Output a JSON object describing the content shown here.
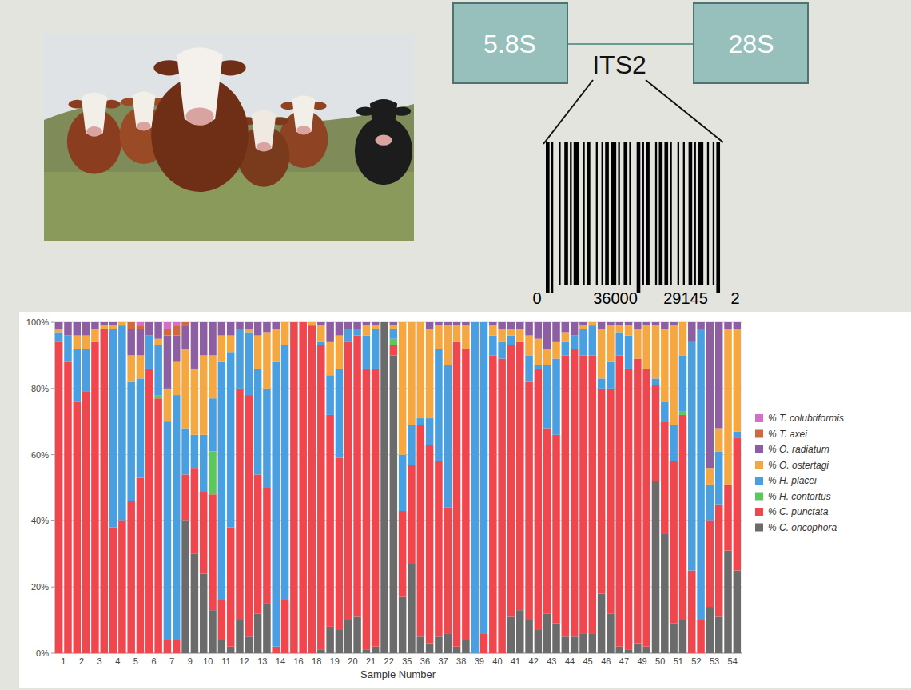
{
  "chart_data": {
    "type": "bar",
    "stacked": true,
    "grid": true,
    "legend": "right",
    "x_label": "Sample Number",
    "ylim": [
      0,
      100
    ],
    "yticks": [
      {
        "value": 0,
        "label": "0%"
      },
      {
        "value": 20,
        "label": "20%"
      },
      {
        "value": 40,
        "label": "40%"
      },
      {
        "value": 60,
        "label": "60%"
      },
      {
        "value": 80,
        "label": "80%"
      },
      {
        "value": 100,
        "label": "100%"
      }
    ],
    "categories": [
      "1",
      null,
      "2",
      null,
      "3",
      null,
      "4",
      null,
      "5",
      null,
      "6",
      null,
      "7",
      null,
      "9",
      null,
      "10",
      null,
      "11",
      null,
      "12",
      null,
      "13",
      null,
      "14",
      null,
      "16",
      null,
      "18",
      null,
      "19",
      null,
      "20",
      null,
      "21",
      null,
      "22",
      null,
      "35",
      null,
      "36",
      null,
      "37",
      null,
      "38",
      null,
      "39",
      null,
      "40",
      null,
      "41",
      null,
      "42",
      null,
      "43",
      null,
      "44",
      null,
      "45",
      null,
      "46",
      null,
      "47",
      null,
      "49",
      null,
      "50",
      null,
      "51",
      null,
      "52",
      null,
      "53",
      null,
      "54",
      null
    ],
    "series": [
      {
        "name": "% C. oncophora",
        "color": "#6b6b6b",
        "values": [
          0,
          0,
          0,
          0,
          0,
          0,
          0,
          0,
          0,
          0,
          0,
          0,
          0,
          0,
          40,
          30,
          24,
          13,
          4,
          2,
          10,
          5,
          12,
          15,
          0,
          0,
          0,
          0,
          0,
          1,
          8,
          7,
          10,
          11,
          1,
          2,
          100,
          90,
          17,
          27,
          5,
          3,
          5,
          6,
          2,
          4,
          0,
          0,
          0,
          0,
          11,
          13,
          10,
          7,
          12,
          9,
          5,
          5,
          6,
          6,
          18,
          12,
          2,
          1,
          3,
          2,
          52,
          36,
          9,
          10,
          0,
          0,
          14,
          11,
          31,
          25
        ]
      },
      {
        "name": "% C. punctata",
        "color": "#f0474f",
        "values": [
          94,
          88,
          76,
          79,
          94,
          98,
          38,
          40,
          46,
          53,
          86,
          77,
          4,
          4,
          14,
          26,
          25,
          35,
          12,
          36,
          70,
          73,
          42,
          35,
          2,
          16,
          100,
          100,
          99,
          92,
          64,
          52,
          84,
          85,
          85,
          84,
          0,
          3,
          26,
          30,
          64,
          60,
          53,
          38,
          92,
          88,
          0,
          6,
          90,
          89,
          82,
          81,
          72,
          79,
          56,
          57,
          85,
          87,
          84,
          84,
          62,
          68,
          88,
          85,
          86,
          84,
          29,
          34,
          49,
          62,
          25,
          10,
          26,
          34,
          20,
          40
        ]
      },
      {
        "name": "% H. contortus",
        "color": "#5cc85c",
        "values": [
          0,
          0,
          0,
          0,
          0,
          0,
          0,
          0,
          0,
          0,
          0,
          1,
          0,
          0,
          0,
          0,
          0,
          13,
          0,
          0,
          0,
          0,
          0,
          0,
          0,
          0,
          0,
          0,
          0,
          0,
          0,
          0,
          0,
          0,
          0,
          0,
          0,
          2,
          0,
          0,
          0,
          0,
          0,
          0,
          0,
          0,
          0,
          0,
          0,
          0,
          0,
          0,
          0,
          0,
          0,
          0,
          0,
          0,
          0,
          0,
          0,
          0,
          0,
          0,
          0,
          0,
          0,
          0,
          0,
          1,
          0,
          0,
          0,
          0,
          0,
          0
        ]
      },
      {
        "name": "% H. placei",
        "color": "#4a9fe0",
        "values": [
          3,
          8,
          16,
          13,
          0,
          0,
          60,
          59,
          36,
          30,
          10,
          15,
          66,
          74,
          14,
          10,
          17,
          16,
          72,
          53,
          18,
          19,
          32,
          30,
          86,
          77,
          0,
          0,
          0,
          1,
          12,
          27,
          4,
          2,
          10,
          12,
          0,
          3,
          17,
          12,
          2,
          8,
          34,
          43,
          0,
          0,
          100,
          94,
          6,
          5,
          3,
          0,
          8,
          1,
          19,
          23,
          4,
          4,
          8,
          9,
          3,
          8,
          7,
          10,
          0,
          0,
          2,
          6,
          11,
          17,
          69,
          88,
          11,
          16,
          0,
          2
        ]
      },
      {
        "name": "% O. ostertagi",
        "color": "#f5a742",
        "values": [
          1,
          0,
          4,
          4,
          4,
          1,
          1,
          1,
          8,
          7,
          0,
          2,
          10,
          10,
          24,
          20,
          24,
          13,
          8,
          5,
          0,
          1,
          10,
          17,
          10,
          7,
          0,
          0,
          1,
          5,
          10,
          10,
          0,
          0,
          3,
          1,
          0,
          1,
          40,
          31,
          29,
          27,
          7,
          12,
          5,
          7,
          0,
          0,
          3,
          4,
          2,
          4,
          6,
          8,
          5,
          5,
          3,
          0,
          1,
          1,
          15,
          11,
          2,
          3,
          9,
          13,
          16,
          22,
          30,
          10,
          0,
          0,
          5,
          7,
          47,
          31
        ]
      },
      {
        "name": "% O. radiatum",
        "color": "#8e5ea2",
        "values": [
          2,
          4,
          4,
          4,
          2,
          1,
          1,
          0,
          8,
          8,
          4,
          5,
          16,
          8,
          7,
          14,
          10,
          10,
          4,
          4,
          2,
          2,
          4,
          3,
          2,
          0,
          0,
          0,
          0,
          1,
          6,
          4,
          2,
          2,
          1,
          1,
          0,
          1,
          0,
          0,
          0,
          2,
          1,
          1,
          1,
          1,
          0,
          0,
          1,
          2,
          2,
          2,
          4,
          5,
          8,
          6,
          3,
          4,
          1,
          0,
          2,
          1,
          1,
          1,
          2,
          1,
          1,
          2,
          1,
          0,
          6,
          2,
          44,
          32,
          2,
          2
        ]
      },
      {
        "name": "% T. axei",
        "color": "#d2693c",
        "values": [
          0,
          0,
          0,
          0,
          0,
          0,
          0,
          0,
          2,
          1,
          0,
          0,
          2,
          3,
          1,
          0,
          0,
          0,
          0,
          0,
          0,
          0,
          0,
          0,
          0,
          0,
          0,
          0,
          0,
          0,
          0,
          0,
          0,
          0,
          0,
          0,
          0,
          0,
          0,
          0,
          0,
          0,
          0,
          0,
          0,
          0,
          0,
          0,
          0,
          0,
          0,
          0,
          0,
          0,
          0,
          0,
          0,
          0,
          0,
          0,
          0,
          0,
          0,
          0,
          0,
          0,
          0,
          0,
          0,
          0,
          0,
          0,
          0,
          0,
          0,
          0
        ]
      },
      {
        "name": "% T. colubriformis",
        "color": "#d36fc6",
        "values": [
          0,
          0,
          0,
          0,
          0,
          0,
          0,
          0,
          0,
          1,
          0,
          0,
          2,
          1,
          0,
          0,
          0,
          0,
          0,
          0,
          0,
          0,
          0,
          0,
          0,
          0,
          0,
          0,
          0,
          0,
          0,
          0,
          0,
          0,
          0,
          0,
          0,
          0,
          0,
          0,
          0,
          0,
          0,
          0,
          0,
          0,
          0,
          0,
          0,
          0,
          0,
          0,
          0,
          0,
          0,
          0,
          0,
          0,
          0,
          0,
          0,
          0,
          0,
          0,
          0,
          0,
          0,
          0,
          0,
          0,
          0,
          0,
          0,
          0,
          0,
          0
        ]
      }
    ]
  },
  "diagram": {
    "left_box": "5.8S",
    "right_box": "28S",
    "region": "ITS2",
    "barcode_digits": [
      "0",
      "36000",
      "29145",
      "2"
    ]
  }
}
